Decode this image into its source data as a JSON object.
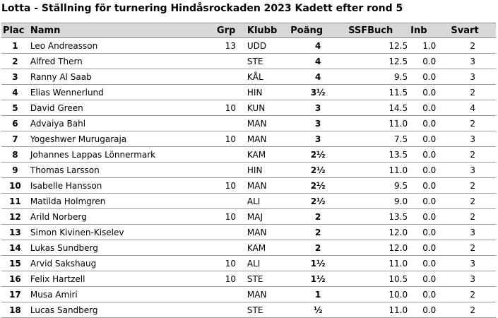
{
  "title": "Lotta - Ställning för turnering Hindåsrockaden 2023 Kadett efter rond 5",
  "columns": {
    "plac": "Plac",
    "namn": "Namn",
    "grp": "Grp",
    "klubb": "Klubb",
    "poang": "Poäng",
    "buch": "SSFBuch",
    "inb": "Inb",
    "svart": "Svart"
  },
  "rows": [
    {
      "plac": "1",
      "namn": "Leo Andreasson",
      "grp": "13",
      "klubb": "UDD",
      "poang": "4",
      "buch": "12.5",
      "inb": "1.0",
      "svart": "2"
    },
    {
      "plac": "2",
      "namn": "Alfred Thern",
      "grp": "",
      "klubb": "STE",
      "poang": "4",
      "buch": "12.5",
      "inb": "0.0",
      "svart": "3"
    },
    {
      "plac": "3",
      "namn": "Ranny Al Saab",
      "grp": "",
      "klubb": "KÅL",
      "poang": "4",
      "buch": "9.5",
      "inb": "0.0",
      "svart": "3"
    },
    {
      "plac": "4",
      "namn": "Elias Wennerlund",
      "grp": "",
      "klubb": "HIN",
      "poang": "3½",
      "buch": "11.5",
      "inb": "0.0",
      "svart": "2"
    },
    {
      "plac": "5",
      "namn": "David Green",
      "grp": "10",
      "klubb": "KUN",
      "poang": "3",
      "buch": "14.5",
      "inb": "0.0",
      "svart": "4"
    },
    {
      "plac": "6",
      "namn": "Advaiya Bahl",
      "grp": "",
      "klubb": "MAN",
      "poang": "3",
      "buch": "11.0",
      "inb": "0.0",
      "svart": "2"
    },
    {
      "plac": "7",
      "namn": "Yogeshwer Murugaraja",
      "grp": "10",
      "klubb": "MAN",
      "poang": "3",
      "buch": "7.5",
      "inb": "0.0",
      "svart": "3"
    },
    {
      "plac": "8",
      "namn": "Johannes Lappas Lönnermark",
      "grp": "",
      "klubb": "KAM",
      "poang": "2½",
      "buch": "13.5",
      "inb": "0.0",
      "svart": "2"
    },
    {
      "plac": "9",
      "namn": "Thomas Larsson",
      "grp": "",
      "klubb": "HIN",
      "poang": "2½",
      "buch": "11.0",
      "inb": "0.0",
      "svart": "3"
    },
    {
      "plac": "10",
      "namn": "Isabelle Hansson",
      "grp": "10",
      "klubb": "MAN",
      "poang": "2½",
      "buch": "9.5",
      "inb": "0.0",
      "svart": "2"
    },
    {
      "plac": "11",
      "namn": "Matilda Holmgren",
      "grp": "",
      "klubb": "ALI",
      "poang": "2½",
      "buch": "9.0",
      "inb": "0.0",
      "svart": "2"
    },
    {
      "plac": "12",
      "namn": "Arild Norberg",
      "grp": "10",
      "klubb": "MAJ",
      "poang": "2",
      "buch": "13.5",
      "inb": "0.0",
      "svart": "2"
    },
    {
      "plac": "13",
      "namn": "Simon Kivinen-Kiselev",
      "grp": "",
      "klubb": "MAN",
      "poang": "2",
      "buch": "12.0",
      "inb": "0.0",
      "svart": "3"
    },
    {
      "plac": "14",
      "namn": "Lukas Sundberg",
      "grp": "",
      "klubb": "KAM",
      "poang": "2",
      "buch": "12.0",
      "inb": "0.0",
      "svart": "2"
    },
    {
      "plac": "15",
      "namn": "Arvid Sakshaug",
      "grp": "10",
      "klubb": "ALI",
      "poang": "1½",
      "buch": "11.0",
      "inb": "0.0",
      "svart": "3"
    },
    {
      "plac": "16",
      "namn": "Felix Hartzell",
      "grp": "10",
      "klubb": "STE",
      "poang": "1½",
      "buch": "10.5",
      "inb": "0.0",
      "svart": "3"
    },
    {
      "plac": "17",
      "namn": "Musa Amiri",
      "grp": "",
      "klubb": "MAN",
      "poang": "1",
      "buch": "10.0",
      "inb": "0.0",
      "svart": "2"
    },
    {
      "plac": "18",
      "namn": "Lucas Sandberg",
      "grp": "",
      "klubb": "STE",
      "poang": "½",
      "buch": "11.0",
      "inb": "0.0",
      "svart": "2"
    }
  ]
}
